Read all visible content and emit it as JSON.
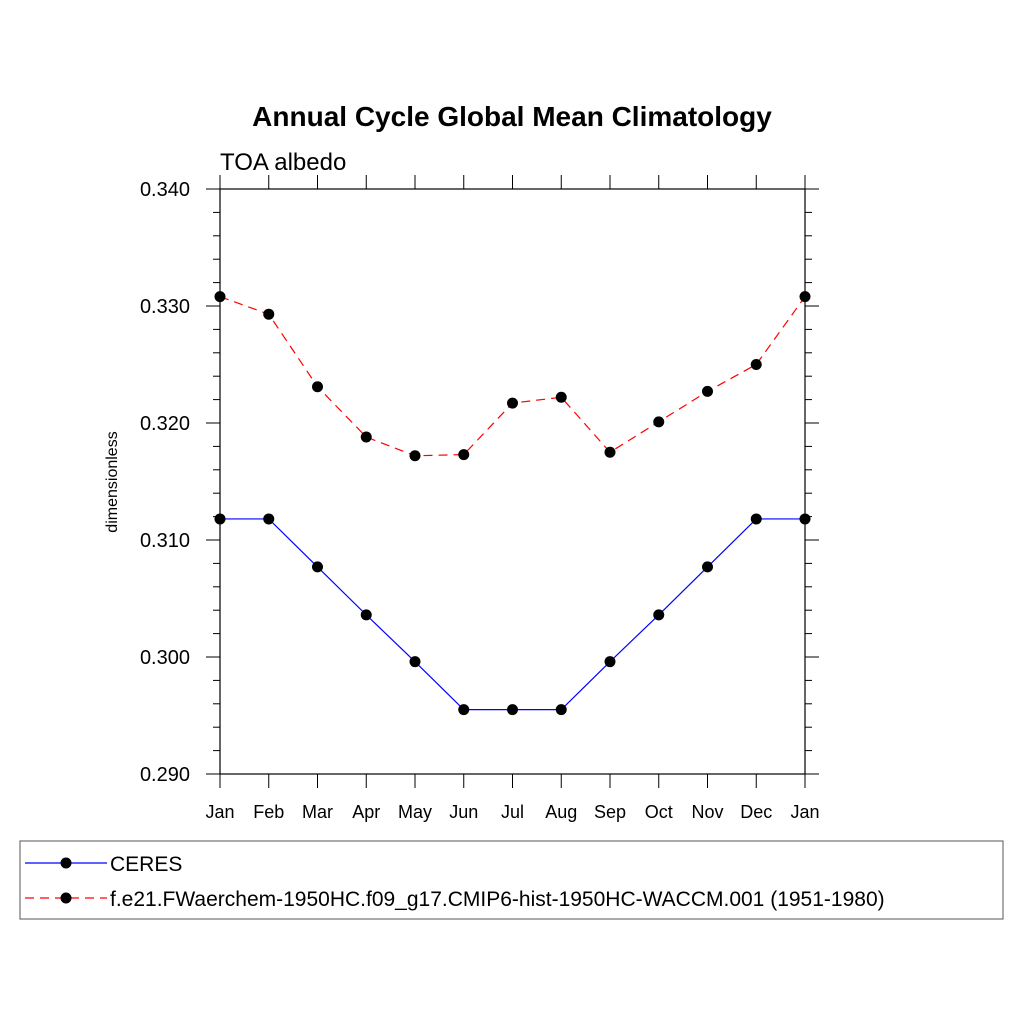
{
  "chart_data": {
    "type": "line",
    "title": "Annual Cycle Global Mean Climatology",
    "subtitle": "TOA albedo",
    "xlabel": "",
    "ylabel": "dimensionless",
    "categories": [
      "Jan",
      "Feb",
      "Mar",
      "Apr",
      "May",
      "Jun",
      "Jul",
      "Aug",
      "Sep",
      "Oct",
      "Nov",
      "Dec",
      "Jan"
    ],
    "ylim": [
      0.29,
      0.34
    ],
    "yticks": [
      "0.290",
      "0.300",
      "0.310",
      "0.320",
      "0.330",
      "0.340"
    ],
    "grid": false,
    "legend_position": "bottom",
    "series": [
      {
        "name": "CERES",
        "color": "#0000ff",
        "line_style": "solid",
        "marker": "filled-circle",
        "values": [
          0.3118,
          0.3118,
          0.3077,
          0.3036,
          0.2996,
          0.2955,
          0.2955,
          0.2955,
          0.2996,
          0.3036,
          0.3077,
          0.3118,
          0.3118
        ]
      },
      {
        "name": "f.e21.FWaerchem-1950HC.f09_g17.CMIP6-hist-1950HC-WACCM.001 (1951-1980)",
        "color": "#ff0000",
        "line_style": "dashed",
        "marker": "filled-circle",
        "values": [
          0.3308,
          0.3293,
          0.3231,
          0.3188,
          0.3172,
          0.3173,
          0.3217,
          0.3222,
          0.3175,
          0.3201,
          0.3227,
          0.325,
          0.3308
        ]
      }
    ]
  }
}
